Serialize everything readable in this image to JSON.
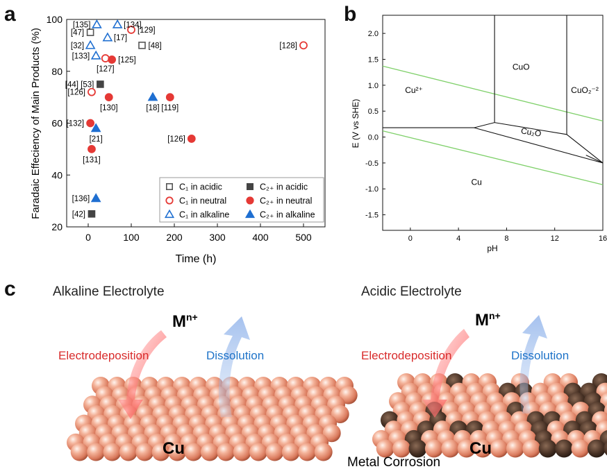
{
  "panels": {
    "a": "a",
    "b": "b",
    "c": "c"
  },
  "chart_data": [
    {
      "type": "scatter",
      "xlabel": "Time (h)",
      "ylabel": "Faradaic Effeciency of Main Products (%)",
      "xlim": [
        -50,
        550
      ],
      "ylim": [
        20,
        100
      ],
      "xticks": [
        0,
        100,
        200,
        300,
        400,
        500
      ],
      "yticks": [
        20,
        40,
        60,
        80,
        100
      ],
      "legend": {
        "placement": "bottom-right",
        "entries": [
          {
            "key": "c1_acidic",
            "label": "C₁ in acidic"
          },
          {
            "key": "c2_acidic",
            "label": "C₂₊ in acidic"
          },
          {
            "key": "c1_neutral",
            "label": "C₁ in neutral"
          },
          {
            "key": "c2_neutral",
            "label": "C₂₊ in neutral"
          },
          {
            "key": "c1_alkaline",
            "label": "C₁ in alkaline"
          },
          {
            "key": "c2_alkaline",
            "label": "C₂₊ in alkaline"
          }
        ]
      },
      "styles": {
        "c1_acidic": {
          "shape": "square",
          "fill": false,
          "color": "#555555"
        },
        "c2_acidic": {
          "shape": "square",
          "fill": true,
          "color": "#444444"
        },
        "c1_neutral": {
          "shape": "circle",
          "fill": false,
          "color": "#e53935"
        },
        "c2_neutral": {
          "shape": "circle",
          "fill": true,
          "color": "#e53935"
        },
        "c1_alkaline": {
          "shape": "triangle",
          "fill": false,
          "color": "#1f6fd1"
        },
        "c2_alkaline": {
          "shape": "triangle",
          "fill": true,
          "color": "#1f6fd1"
        }
      },
      "series": [
        {
          "key": "c1_acidic",
          "points": [
            {
              "x": 5,
              "y": 95,
              "label": "[47]",
              "pos": "left"
            },
            {
              "x": 125,
              "y": 90,
              "label": "[48]",
              "pos": "right"
            }
          ]
        },
        {
          "key": "c2_acidic",
          "points": [
            {
              "x": 28,
              "y": 75,
              "label": "[44] [53]",
              "pos": "left"
            },
            {
              "x": 8,
              "y": 25,
              "label": "[42]",
              "pos": "left"
            }
          ]
        },
        {
          "key": "c1_neutral",
          "points": [
            {
              "x": 100,
              "y": 96,
              "label": "[129]",
              "pos": "right"
            },
            {
              "x": 40,
              "y": 85,
              "label": "[127]",
              "pos": "below"
            },
            {
              "x": 8,
              "y": 72,
              "label": "[126]",
              "pos": "left"
            },
            {
              "x": 500,
              "y": 90,
              "label": "[128]",
              "pos": "left"
            }
          ]
        },
        {
          "key": "c2_neutral",
          "points": [
            {
              "x": 55,
              "y": 84.5,
              "label": "[125]",
              "pos": "right"
            },
            {
              "x": 48,
              "y": 70,
              "label": "[130]",
              "pos": "below"
            },
            {
              "x": 190,
              "y": 70,
              "label": "[119]",
              "pos": "below"
            },
            {
              "x": 5,
              "y": 60,
              "label": "[132]",
              "pos": "left"
            },
            {
              "x": 8,
              "y": 50,
              "label": "[131]",
              "pos": "below"
            },
            {
              "x": 240,
              "y": 54,
              "label": "[126]",
              "pos": "left"
            }
          ]
        },
        {
          "key": "c1_alkaline",
          "points": [
            {
              "x": 20,
              "y": 98,
              "label": "[135]",
              "pos": "left"
            },
            {
              "x": 68,
              "y": 98,
              "label": "[134]",
              "pos": "right"
            },
            {
              "x": 45,
              "y": 93,
              "label": "[17]",
              "pos": "right"
            },
            {
              "x": 5,
              "y": 90,
              "label": "[32]",
              "pos": "left"
            },
            {
              "x": 18,
              "y": 86,
              "label": "[133]",
              "pos": "left"
            }
          ]
        },
        {
          "key": "c2_alkaline",
          "points": [
            {
              "x": 150,
              "y": 70,
              "label": "[18]",
              "pos": "below"
            },
            {
              "x": 18,
              "y": 58,
              "label": "[21]",
              "pos": "below"
            },
            {
              "x": 18,
              "y": 31,
              "label": "[136]",
              "pos": "left"
            }
          ]
        }
      ]
    },
    {
      "type": "pourbaix",
      "xlabel": "pH",
      "ylabel": "E (V vs SHE)",
      "xlim": [
        -2.3,
        16
      ],
      "ylim": [
        -1.8,
        2.35
      ],
      "xticks": [
        0,
        4,
        8,
        12,
        16
      ],
      "yticks": [
        -1.5,
        -1.0,
        -0.5,
        0.0,
        0.5,
        1.0,
        1.5,
        2.0
      ],
      "ytick_labels": [
        "-1.5",
        "-1.0",
        "-0.5",
        "0.0",
        "0.5",
        "1.0",
        "1.5",
        "2.0"
      ],
      "region_labels": [
        {
          "text": "Cu²⁺",
          "x": 0.3,
          "y": 0.85
        },
        {
          "text": "CuO",
          "x": 9.2,
          "y": 1.3
        },
        {
          "text": "CuO₂⁻²",
          "x": 14.5,
          "y": 0.85
        },
        {
          "text": "Cu₂O",
          "x": 10.0,
          "y": 0.04
        },
        {
          "text": "Cu",
          "x": 5.5,
          "y": -0.92
        }
      ],
      "boundaries": [
        [
          [
            -2.3,
            0.18
          ],
          [
            5.3,
            0.18
          ],
          [
            7.0,
            0.28
          ],
          [
            13.0,
            0.05
          ],
          [
            16,
            -0.5
          ]
        ],
        [
          [
            5.3,
            0.18
          ],
          [
            16,
            -0.5
          ]
        ],
        [
          [
            7.0,
            2.35
          ],
          [
            7.0,
            0.28
          ]
        ],
        [
          [
            13.0,
            2.35
          ],
          [
            13.0,
            0.05
          ]
        ],
        [
          [
            14.6,
            -0.35
          ],
          [
            16,
            -0.5
          ]
        ]
      ],
      "water_lines": [
        [
          [
            -2.3,
            1.37
          ],
          [
            16,
            0.31
          ]
        ],
        [
          [
            -2.3,
            0.12
          ],
          [
            16,
            -0.92
          ]
        ]
      ],
      "colors": {
        "water": "#7fd06a",
        "boundary": "#111111"
      }
    }
  ],
  "scenes": {
    "left": {
      "title": "Alkaline Electrolyte",
      "ion": "M",
      "ion_sup": "n+",
      "deposit_label": "Electrodeposition",
      "dissolve_label": "Dissolution",
      "substrate": "Cu"
    },
    "right": {
      "title": "Acidic Electrolyte",
      "ion": "M",
      "ion_sup": "n+",
      "deposit_label": "Electrodeposition",
      "dissolve_label": "Dissolution",
      "substrate": "Cu",
      "caption": "Metal Corrosion"
    },
    "colors": {
      "deposit": "#e0262a",
      "dissolve": "#1e73c8",
      "sphere": "#e89a80"
    }
  }
}
